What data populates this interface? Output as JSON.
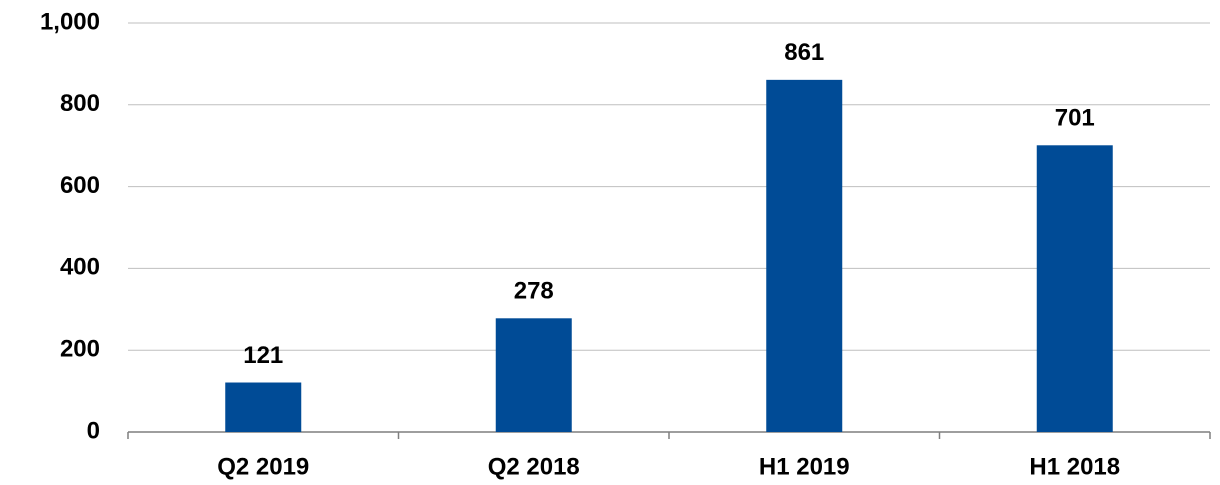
{
  "chart_data": {
    "type": "bar",
    "categories": [
      "Q2 2019",
      "Q2 2018",
      "H1 2019",
      "H1 2018"
    ],
    "values": [
      121,
      278,
      861,
      701
    ],
    "color": "#004b96",
    "ylim": [
      0,
      1000
    ],
    "yticks": [
      0,
      200,
      400,
      600,
      800,
      {
        "value": 1000,
        "label": "1,000"
      }
    ],
    "grid": true
  }
}
